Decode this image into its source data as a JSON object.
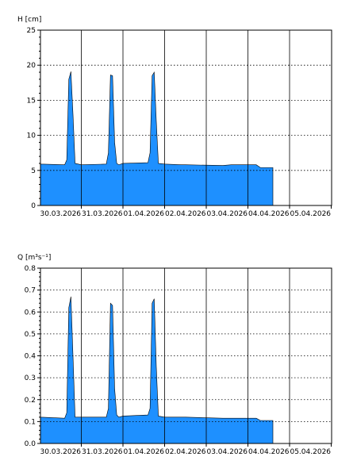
{
  "chart_data": [
    {
      "type": "area",
      "ylabel": "H [cm]",
      "ylim": [
        0,
        25
      ],
      "yticks": [
        0,
        5,
        10,
        15,
        20,
        25
      ],
      "categories": [
        "30.03.2026",
        "31.03.2026",
        "01.04.2026",
        "02.04.2026",
        "03.04.2026",
        "04.04.2026",
        "05.04.2026"
      ],
      "grid": "on",
      "fill_color": "#1e90ff",
      "series": [
        {
          "x": [
            -0.6,
            -0.4,
            -0.35,
            -0.3,
            -0.25,
            -0.2,
            -0.15,
            0.6,
            0.65,
            0.7,
            0.75,
            0.8,
            0.85,
            1.0,
            1.6,
            1.65,
            1.7,
            1.75,
            1.8,
            1.85,
            1.9,
            2.0,
            2.6,
            2.65,
            2.7,
            2.75,
            2.8,
            2.85,
            3.0,
            3.4,
            3.5,
            4.4,
            4.6,
            5.2,
            5.3,
            5.6
          ],
          "values": [
            5.8,
            5.8,
            6.5,
            17.5,
            18.4,
            12,
            5.9,
            5.8,
            6.5,
            18.0,
            19.1,
            13,
            6.0,
            5.8,
            5.9,
            7.5,
            18.6,
            18.5,
            9,
            6.0,
            5.8,
            6.0,
            6.1,
            7.5,
            18.5,
            19.0,
            12,
            6.0,
            5.9,
            5.8,
            5.8,
            5.7,
            5.8,
            5.8,
            5.4,
            5.4
          ]
        }
      ]
    },
    {
      "type": "area",
      "ylabel": "Q [m³s⁻¹]",
      "ylim": [
        0,
        0.8
      ],
      "yticks": [
        0,
        0.1,
        0.2,
        0.3,
        0.4,
        0.5,
        0.6,
        0.7,
        0.8
      ],
      "categories": [
        "30.03.2026",
        "31.03.2026",
        "01.04.2026",
        "02.04.2026",
        "03.04.2026",
        "04.04.2026",
        "05.04.2026"
      ],
      "grid": "on",
      "fill_color": "#1e90ff",
      "series": [
        {
          "x": [
            -0.6,
            -0.4,
            -0.35,
            -0.3,
            -0.25,
            -0.2,
            -0.15,
            0.6,
            0.65,
            0.7,
            0.75,
            0.8,
            0.85,
            1.0,
            1.6,
            1.65,
            1.7,
            1.75,
            1.8,
            1.85,
            1.9,
            2.0,
            2.6,
            2.65,
            2.7,
            2.75,
            2.8,
            2.85,
            3.0,
            3.4,
            3.5,
            4.4,
            4.6,
            5.2,
            5.3,
            5.6
          ],
          "values": [
            0.115,
            0.115,
            0.14,
            0.58,
            0.63,
            0.35,
            0.12,
            0.115,
            0.14,
            0.62,
            0.67,
            0.4,
            0.12,
            0.12,
            0.12,
            0.16,
            0.64,
            0.63,
            0.25,
            0.13,
            0.12,
            0.125,
            0.13,
            0.16,
            0.64,
            0.66,
            0.35,
            0.125,
            0.12,
            0.12,
            0.12,
            0.115,
            0.115,
            0.115,
            0.105,
            0.105
          ]
        }
      ]
    }
  ]
}
